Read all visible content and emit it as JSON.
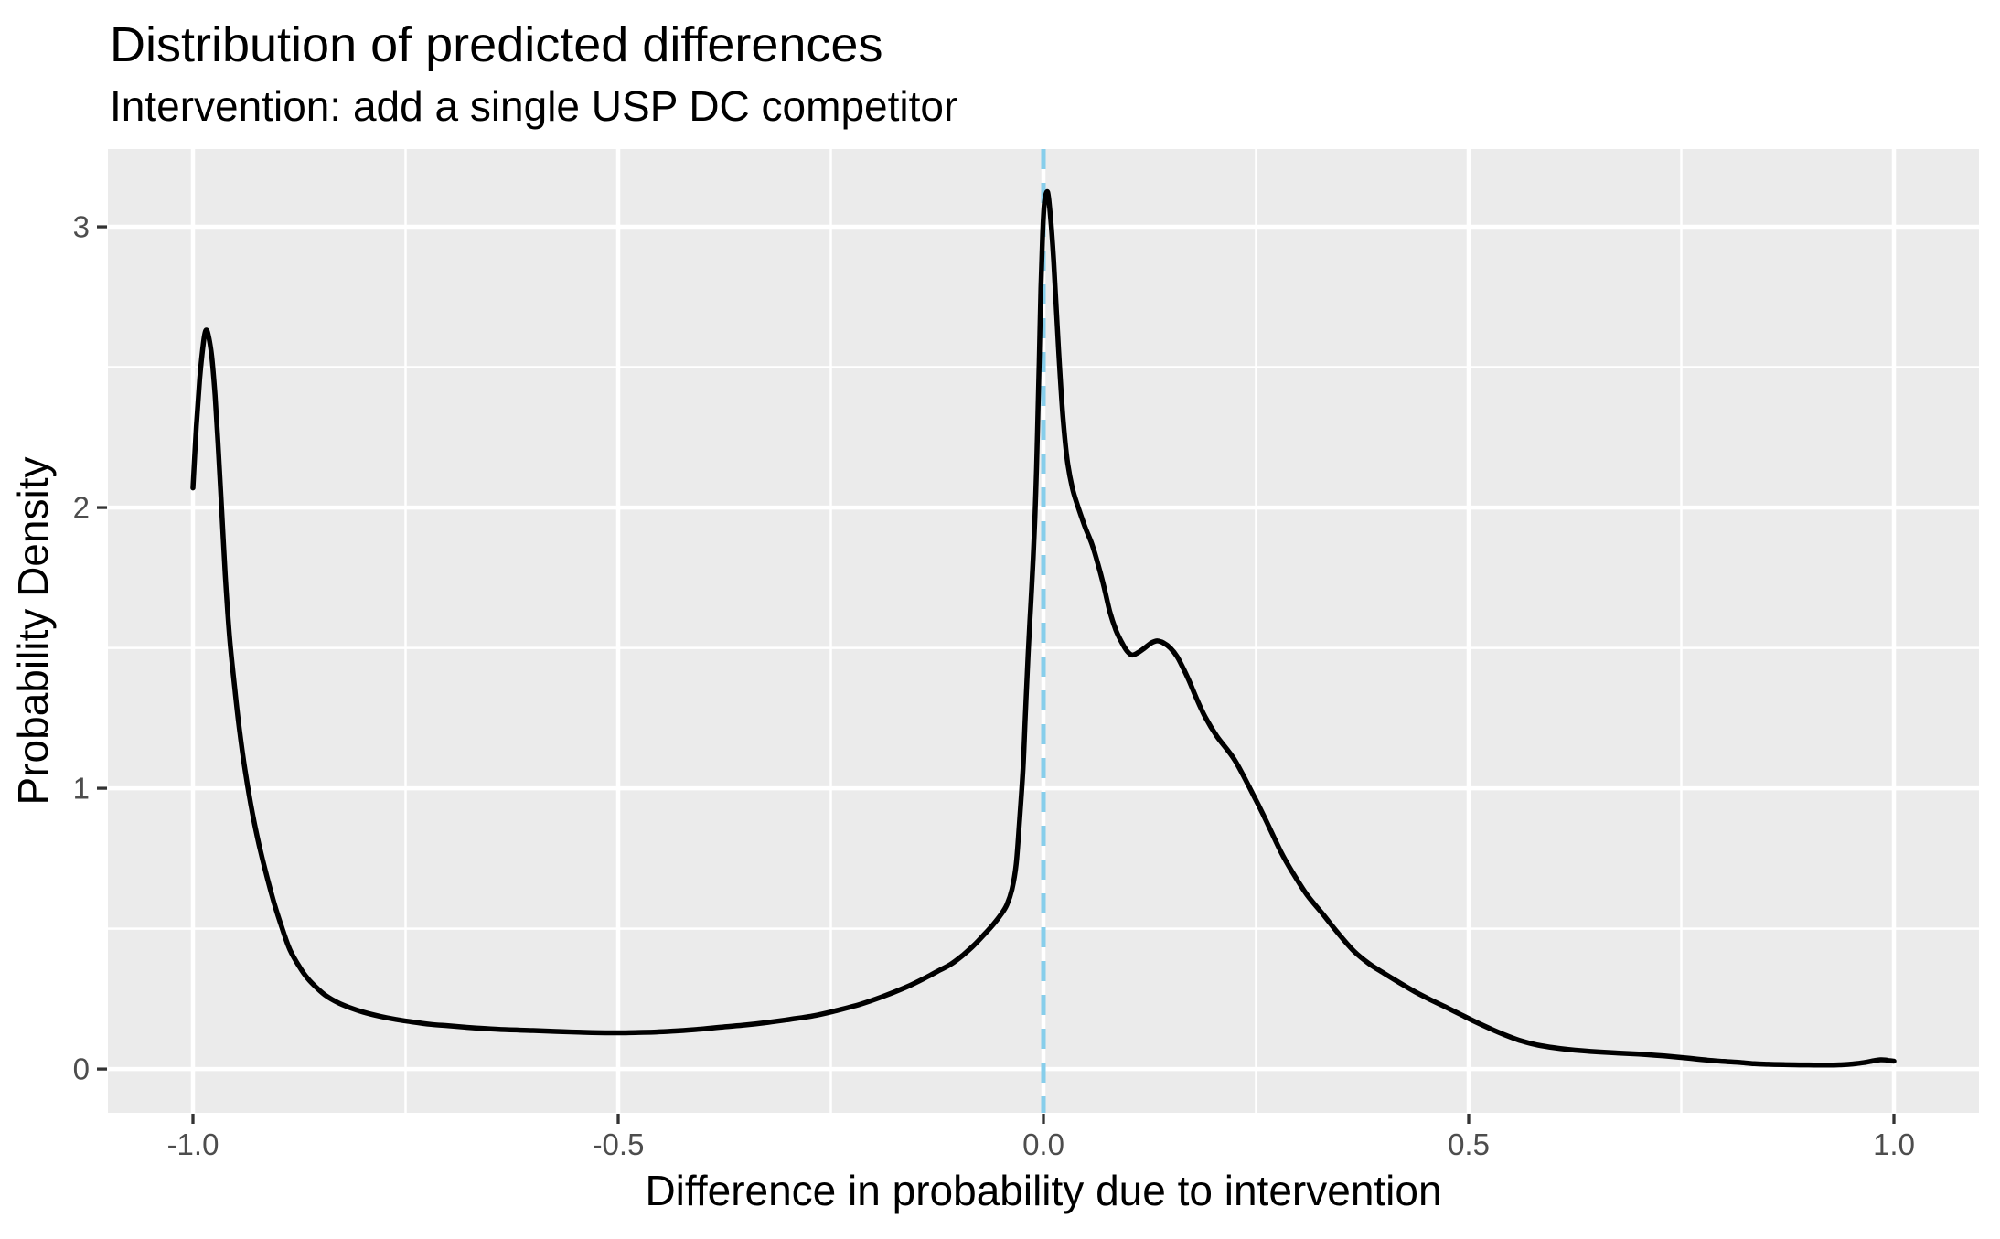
{
  "chart_data": {
    "type": "line",
    "title": "Distribution of predicted differences",
    "subtitle": "Intervention: add a single USP DC competitor",
    "xlabel": "Difference in probability due to intervention",
    "ylabel": "Probability Density",
    "xlim": [
      -1.1,
      1.1
    ],
    "ylim": [
      -0.156,
      3.277
    ],
    "x_ticks": [
      -1.0,
      -0.5,
      0.0,
      0.5,
      1.0
    ],
    "x_tick_labels": [
      "-1.0",
      "-0.5",
      "0.0",
      "0.5",
      "1.0"
    ],
    "y_ticks": [
      0,
      1,
      2,
      3
    ],
    "y_tick_labels": [
      "0",
      "1",
      "2",
      "3"
    ],
    "minor_x_gridlines": [
      -0.75,
      -0.25,
      0.25,
      0.75
    ],
    "minor_y_gridlines": [
      0.5,
      1.5,
      2.5
    ],
    "grid": true,
    "legend": "none",
    "reference_line": {
      "x": 0.0,
      "style": "dashed",
      "color": "#87CEEB"
    },
    "colors": {
      "panel_background": "#EBEBEB",
      "gridline": "#FFFFFF",
      "curve": "#000000",
      "tick_mark": "#333333",
      "tick_text": "#4D4D4D"
    },
    "series": [
      {
        "name": "predicted-difference-density",
        "points": [
          [
            -1.0,
            2.07
          ],
          [
            -0.996,
            2.29
          ],
          [
            -0.992,
            2.46
          ],
          [
            -0.988,
            2.58
          ],
          [
            -0.985,
            2.63
          ],
          [
            -0.982,
            2.615
          ],
          [
            -0.978,
            2.54
          ],
          [
            -0.974,
            2.4
          ],
          [
            -0.97,
            2.2
          ],
          [
            -0.966,
            1.98
          ],
          [
            -0.962,
            1.76
          ],
          [
            -0.957,
            1.54
          ],
          [
            -0.951,
            1.36
          ],
          [
            -0.945,
            1.2
          ],
          [
            -0.938,
            1.05
          ],
          [
            -0.93,
            0.91
          ],
          [
            -0.922,
            0.795
          ],
          [
            -0.913,
            0.685
          ],
          [
            -0.904,
            0.585
          ],
          [
            -0.895,
            0.5
          ],
          [
            -0.886,
            0.425
          ],
          [
            -0.875,
            0.365
          ],
          [
            -0.865,
            0.322
          ],
          [
            -0.854,
            0.288
          ],
          [
            -0.843,
            0.26
          ],
          [
            -0.83,
            0.237
          ],
          [
            -0.815,
            0.218
          ],
          [
            -0.8,
            0.203
          ],
          [
            -0.779,
            0.187
          ],
          [
            -0.76,
            0.176
          ],
          [
            -0.743,
            0.168
          ],
          [
            -0.72,
            0.159
          ],
          [
            -0.7,
            0.154
          ],
          [
            -0.671,
            0.147
          ],
          [
            -0.64,
            0.141
          ],
          [
            -0.6,
            0.137
          ],
          [
            -0.565,
            0.133
          ],
          [
            -0.531,
            0.13
          ],
          [
            -0.5,
            0.129
          ],
          [
            -0.48,
            0.13
          ],
          [
            -0.455,
            0.132
          ],
          [
            -0.431,
            0.136
          ],
          [
            -0.4,
            0.143
          ],
          [
            -0.38,
            0.149
          ],
          [
            -0.35,
            0.157
          ],
          [
            -0.324,
            0.166
          ],
          [
            -0.3,
            0.176
          ],
          [
            -0.27,
            0.19
          ],
          [
            -0.245,
            0.207
          ],
          [
            -0.216,
            0.23
          ],
          [
            -0.19,
            0.257
          ],
          [
            -0.162,
            0.291
          ],
          [
            -0.14,
            0.323
          ],
          [
            -0.122,
            0.352
          ],
          [
            -0.109,
            0.373
          ],
          [
            -0.095,
            0.405
          ],
          [
            -0.082,
            0.44
          ],
          [
            -0.07,
            0.478
          ],
          [
            -0.059,
            0.515
          ],
          [
            -0.05,
            0.55
          ],
          [
            -0.043,
            0.585
          ],
          [
            -0.037,
            0.64
          ],
          [
            -0.032,
            0.73
          ],
          [
            -0.028,
            0.89
          ],
          [
            -0.024,
            1.07
          ],
          [
            -0.021,
            1.28
          ],
          [
            -0.018,
            1.48
          ],
          [
            -0.015,
            1.65
          ],
          [
            -0.012,
            1.82
          ],
          [
            -0.009,
            2.05
          ],
          [
            -0.007,
            2.27
          ],
          [
            -0.005,
            2.52
          ],
          [
            -0.003,
            2.78
          ],
          [
            -0.001,
            2.97
          ],
          [
            0.001,
            3.08
          ],
          [
            0.004,
            3.124
          ],
          [
            0.006,
            3.105
          ],
          [
            0.009,
            3.01
          ],
          [
            0.012,
            2.88
          ],
          [
            0.016,
            2.66
          ],
          [
            0.019,
            2.5
          ],
          [
            0.023,
            2.32
          ],
          [
            0.028,
            2.17
          ],
          [
            0.034,
            2.07
          ],
          [
            0.041,
            2.0
          ],
          [
            0.049,
            1.93
          ],
          [
            0.057,
            1.87
          ],
          [
            0.064,
            1.8
          ],
          [
            0.071,
            1.72
          ],
          [
            0.078,
            1.63
          ],
          [
            0.085,
            1.565
          ],
          [
            0.092,
            1.52
          ],
          [
            0.098,
            1.49
          ],
          [
            0.104,
            1.475
          ],
          [
            0.111,
            1.483
          ],
          [
            0.119,
            1.5
          ],
          [
            0.127,
            1.518
          ],
          [
            0.134,
            1.525
          ],
          [
            0.141,
            1.518
          ],
          [
            0.149,
            1.5
          ],
          [
            0.157,
            1.47
          ],
          [
            0.164,
            1.43
          ],
          [
            0.171,
            1.385
          ],
          [
            0.18,
            1.32
          ],
          [
            0.19,
            1.255
          ],
          [
            0.204,
            1.185
          ],
          [
            0.225,
            1.1
          ],
          [
            0.247,
            0.975
          ],
          [
            0.261,
            0.89
          ],
          [
            0.279,
            0.775
          ],
          [
            0.293,
            0.7
          ],
          [
            0.31,
            0.62
          ],
          [
            0.329,
            0.55
          ],
          [
            0.347,
            0.482
          ],
          [
            0.365,
            0.42
          ],
          [
            0.383,
            0.375
          ],
          [
            0.401,
            0.34
          ],
          [
            0.42,
            0.305
          ],
          [
            0.437,
            0.275
          ],
          [
            0.455,
            0.247
          ],
          [
            0.472,
            0.222
          ],
          [
            0.49,
            0.195
          ],
          [
            0.508,
            0.168
          ],
          [
            0.526,
            0.143
          ],
          [
            0.544,
            0.12
          ],
          [
            0.562,
            0.1
          ],
          [
            0.58,
            0.086
          ],
          [
            0.598,
            0.077
          ],
          [
            0.616,
            0.07
          ],
          [
            0.634,
            0.065
          ],
          [
            0.652,
            0.061
          ],
          [
            0.675,
            0.057
          ],
          [
            0.7,
            0.053
          ],
          [
            0.72,
            0.049
          ],
          [
            0.74,
            0.044
          ],
          [
            0.76,
            0.038
          ],
          [
            0.78,
            0.032
          ],
          [
            0.8,
            0.027
          ],
          [
            0.82,
            0.023
          ],
          [
            0.836,
            0.019
          ],
          [
            0.852,
            0.017
          ],
          [
            0.87,
            0.0155
          ],
          [
            0.89,
            0.0148
          ],
          [
            0.906,
            0.0143
          ],
          [
            0.923,
            0.014
          ],
          [
            0.936,
            0.015
          ],
          [
            0.948,
            0.017
          ],
          [
            0.959,
            0.0205
          ],
          [
            0.966,
            0.0235
          ],
          [
            0.972,
            0.027
          ],
          [
            0.978,
            0.0305
          ],
          [
            0.984,
            0.033
          ],
          [
            0.99,
            0.0322
          ],
          [
            0.995,
            0.0295
          ],
          [
            1.0,
            0.028
          ]
        ]
      }
    ]
  }
}
